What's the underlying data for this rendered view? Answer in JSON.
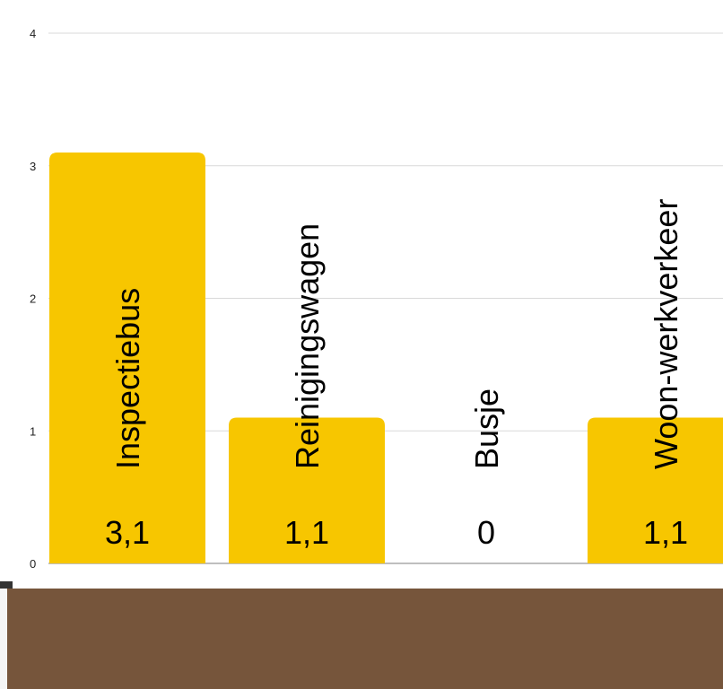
{
  "colors": {
    "bar": "#f7c600",
    "bottom_panel": "#76553b"
  },
  "chart_data": {
    "type": "bar",
    "categories": [
      "Inspectiebus",
      "Reinigingswagen",
      "Busje",
      "Woon-werkverkeer"
    ],
    "values": [
      3.1,
      1.1,
      0,
      1.1
    ],
    "value_labels": [
      "3,1",
      "1,1",
      "0",
      "1,1"
    ],
    "y_ticks": [
      "0",
      "1",
      "2",
      "3",
      "4"
    ],
    "ylim": [
      0,
      4
    ],
    "grid": true,
    "legend": "none",
    "title": "",
    "xlabel": "",
    "ylabel": ""
  }
}
